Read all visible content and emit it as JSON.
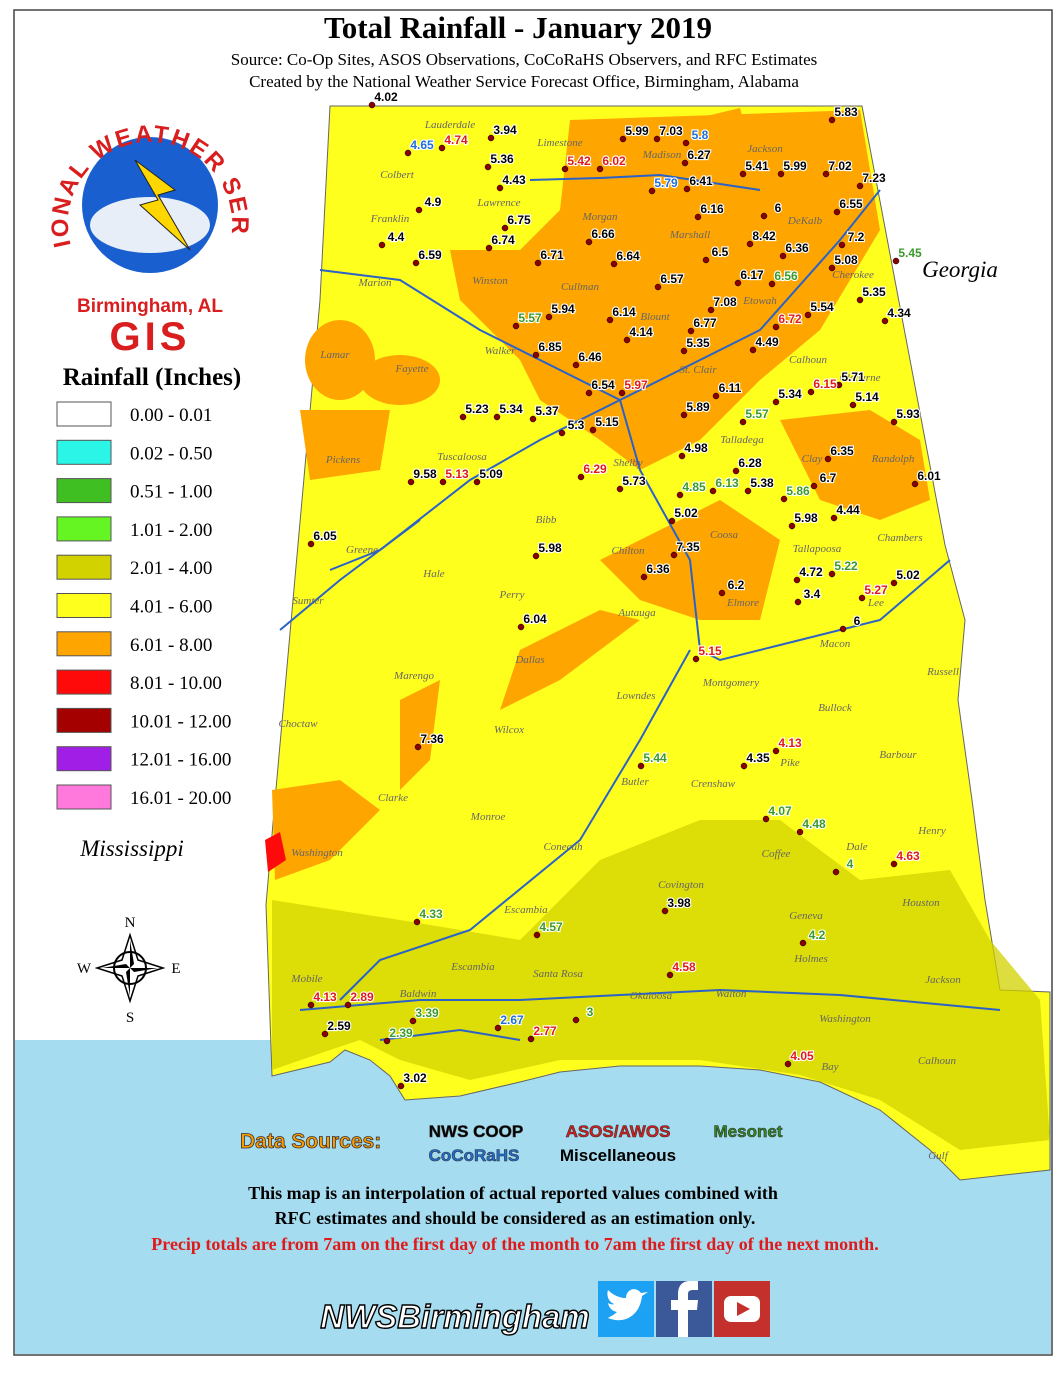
{
  "header": {
    "title": "Total Rainfall - January 2019",
    "source": "Source: Co-Op Sites, ASOS Observations, CoCoRaHS Observers, and RFC Estimates",
    "created": "Created by the National Weather Service Forecast Office, Birmingham, Alabama"
  },
  "logo": {
    "ring": "NATIONAL WEATHER SERVICE",
    "office": "Birmingham, AL",
    "gis": "GIS"
  },
  "legend": {
    "title": "Rainfall (Inches)",
    "items": [
      {
        "label": "0.00 - 0.01",
        "color": "#ffffff"
      },
      {
        "label": "0.02 - 0.50",
        "color": "#2af5e6"
      },
      {
        "label": "0.51 - 1.00",
        "color": "#3fbf22"
      },
      {
        "label": "1.01 - 2.00",
        "color": "#64f522"
      },
      {
        "label": "2.01 - 4.00",
        "color": "#d2d200"
      },
      {
        "label": "4.01 - 6.00",
        "color": "#ffff1e"
      },
      {
        "label": "6.01 - 8.00",
        "color": "#ffa500"
      },
      {
        "label": "8.01 - 10.00",
        "color": "#ff0a0a"
      },
      {
        "label": "10.01 - 12.00",
        "color": "#a50000"
      },
      {
        "label": "12.01 - 16.00",
        "color": "#a01ee6"
      },
      {
        "label": "16.01 - 20.00",
        "color": "#ff78dc"
      }
    ]
  },
  "states": [
    "Georgia",
    "Mississippi"
  ],
  "compass": [
    "N",
    "E",
    "S",
    "W"
  ],
  "counties": [
    "Lauderdale",
    "Limestone",
    "Madison",
    "Jackson",
    "Colbert",
    "Lawrence",
    "Morgan",
    "Franklin",
    "Marshall",
    "DeKalb",
    "Marion",
    "Winston",
    "Cullman",
    "Cherokee",
    "Etowah",
    "Blount",
    "Lamar",
    "Fayette",
    "Walker",
    "St. Clair",
    "Calhoun",
    "Cleburne",
    "Pickens",
    "Tuscaloosa",
    "Talladega",
    "Clay",
    "Randolph",
    "Shelby",
    "Bibb",
    "Coosa",
    "Chambers",
    "Greene",
    "Hale",
    "Chilton",
    "Tallapoosa",
    "Sumter",
    "Perry",
    "Autauga",
    "Elmore",
    "Lee",
    "Dallas",
    "Macon",
    "Marengo",
    "Lowndes",
    "Montgomery",
    "Russell",
    "Choctaw",
    "Wilcox",
    "Bullock",
    "Butler",
    "Pike",
    "Barbour",
    "Crenshaw",
    "Clarke",
    "Monroe",
    "Henry",
    "Washington",
    "Conecuh",
    "Coffee",
    "Dale",
    "Covington",
    "Escambia",
    "Geneva",
    "Houston",
    "Holmes",
    "Mobile",
    "Baldwin",
    "Escambia",
    "Santa Rosa",
    "Okaloosa",
    "Walton",
    "Jackson",
    "Washington",
    "Calhoun",
    "Bay",
    "Gulf"
  ],
  "stations": {
    "nws_coop": {
      "color": "#000000",
      "values": [
        "4.02",
        "3.94",
        "5.36",
        "4.43",
        "4.9",
        "4.4",
        "6.59",
        "6.75",
        "6.74",
        "6.66",
        "5.99",
        "7.03",
        "6.27",
        "6.41",
        "5.41",
        "5.99",
        "7.02",
        "5.83",
        "7.23",
        "6.16",
        "6",
        "6.55",
        "8.42",
        "6.36",
        "7.2",
        "6.5",
        "5.08",
        "6.17",
        "5.35",
        "6.64",
        "6.57",
        "6.71",
        "5.94",
        "6.14",
        "4.14",
        "6.77",
        "7.08",
        "5.54",
        "4.34",
        "6.85",
        "6.46",
        "5.35",
        "4.49",
        "6.54",
        "5.23",
        "5.34",
        "5.37",
        "5.3",
        "5.15",
        "5.89",
        "5.34",
        "5.71",
        "5.14",
        "5.93",
        "6.11",
        "4.98",
        "6.28",
        "5.38",
        "6.35",
        "6.7",
        "6.01",
        "9.58",
        "5.09",
        "5.73",
        "5.02",
        "5.98",
        "4.44",
        "6.05",
        "5.98",
        "7.35",
        "6.36",
        "4.72",
        "3.4",
        "6.2",
        "5.02",
        "6",
        "6.04",
        "7.36",
        "4.35",
        "3.98",
        "2.59",
        "3.02"
      ]
    },
    "asos_awos": {
      "color": "#e01a1a",
      "values": [
        "4.74",
        "5.42",
        "6.02",
        "6.72",
        "5.97",
        "6.15",
        "5.13",
        "6.29",
        "5.27",
        "5.15",
        "4.13",
        "4.63",
        "4.58",
        "4.13",
        "2.89",
        "2.77",
        "4.05"
      ]
    },
    "mesonet": {
      "color": "#3a9a2a",
      "values": [
        "5.45",
        "6.56",
        "5.57",
        "5.57",
        "4.85",
        "6.13",
        "5.86",
        "5.22",
        "5.44",
        "4.07",
        "4.48",
        "4",
        "4.33",
        "4.57",
        "4.2",
        "3.39",
        "2.39",
        "3"
      ]
    },
    "cocorahs": {
      "color": "#1e6fd6",
      "values": [
        "4.65",
        "5.8",
        "5.79",
        "2.67"
      ]
    }
  },
  "data_sources": {
    "title": "Data Sources:",
    "items": [
      {
        "label": "NWS COOP",
        "color": "#000000"
      },
      {
        "label": "ASOS/AWOS",
        "color": "#e01a1a"
      },
      {
        "label": "Mesonet",
        "color": "#2e8b1e"
      },
      {
        "label": "CoCoRaHS",
        "color": "#1e6fd6"
      },
      {
        "label": "Miscellaneous",
        "color": "#000000"
      }
    ]
  },
  "notes": [
    "This map is an interpolation of actual reported values combined with",
    "RFC estimates and should be considered as an estimation only.",
    "Precip totals are from 7am on the first day of the month to 7am the first day of the next month."
  ],
  "handle": "NWSBirmingham"
}
